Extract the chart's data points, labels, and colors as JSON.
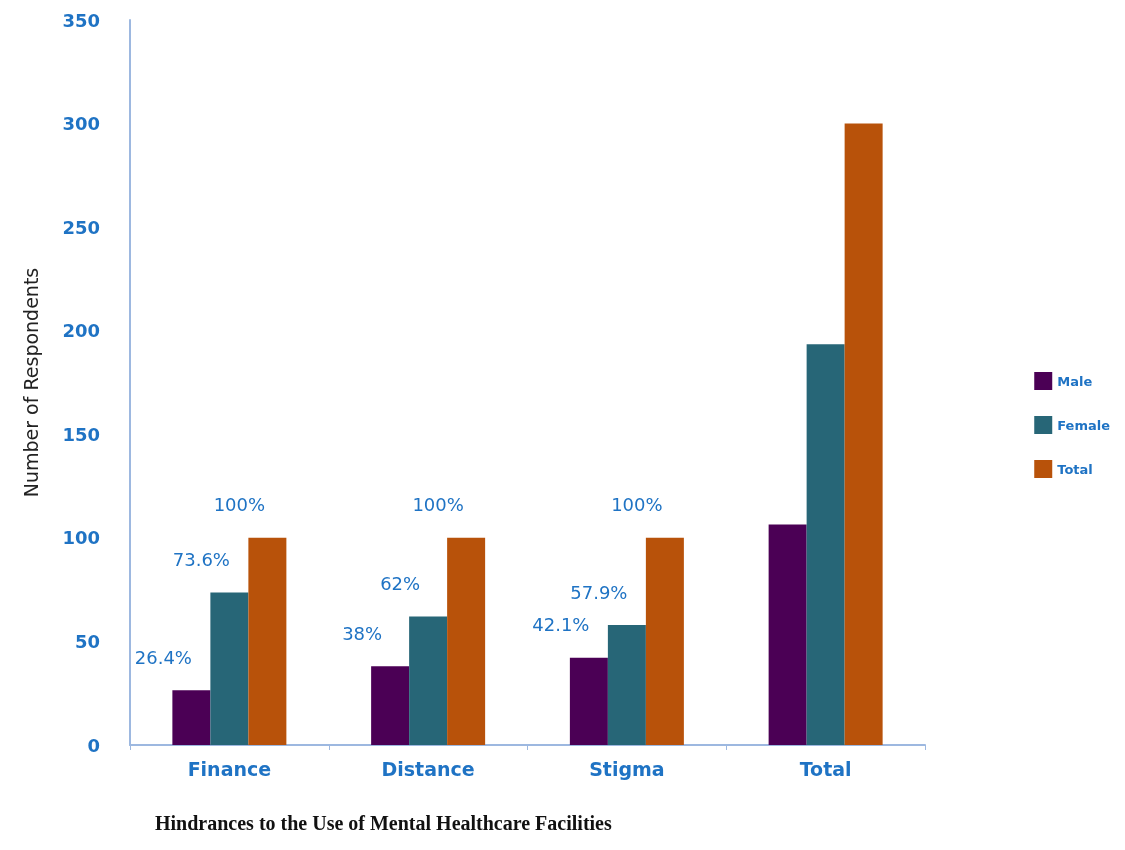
{
  "chart_data": {
    "type": "bar",
    "title": "Hindrances to the Use of Mental Healthcare Facilities",
    "ylabel": "Number of Respondents",
    "categories": [
      "Finance",
      "Distance",
      "Stigma",
      "Total"
    ],
    "series": [
      {
        "name": "Male",
        "color": "#4b0055",
        "values": [
          26.4,
          38,
          42.1,
          106.5
        ],
        "value_labels": [
          "26.4%",
          "38%",
          "42.1%",
          null
        ]
      },
      {
        "name": "Female",
        "color": "#276677",
        "values": [
          73.6,
          62,
          57.9,
          193.5
        ],
        "value_labels": [
          "73.6%",
          "62%",
          "57.9%",
          null
        ]
      },
      {
        "name": "Total",
        "color": "#b8520a",
        "values": [
          100,
          100,
          100,
          300
        ],
        "value_labels": [
          "100%",
          "100%",
          "100%",
          null
        ]
      }
    ],
    "ylim": [
      0,
      350
    ],
    "yticks": [
      0,
      50,
      100,
      150,
      200,
      250,
      300,
      350
    ],
    "grid": false,
    "legend": "right"
  }
}
